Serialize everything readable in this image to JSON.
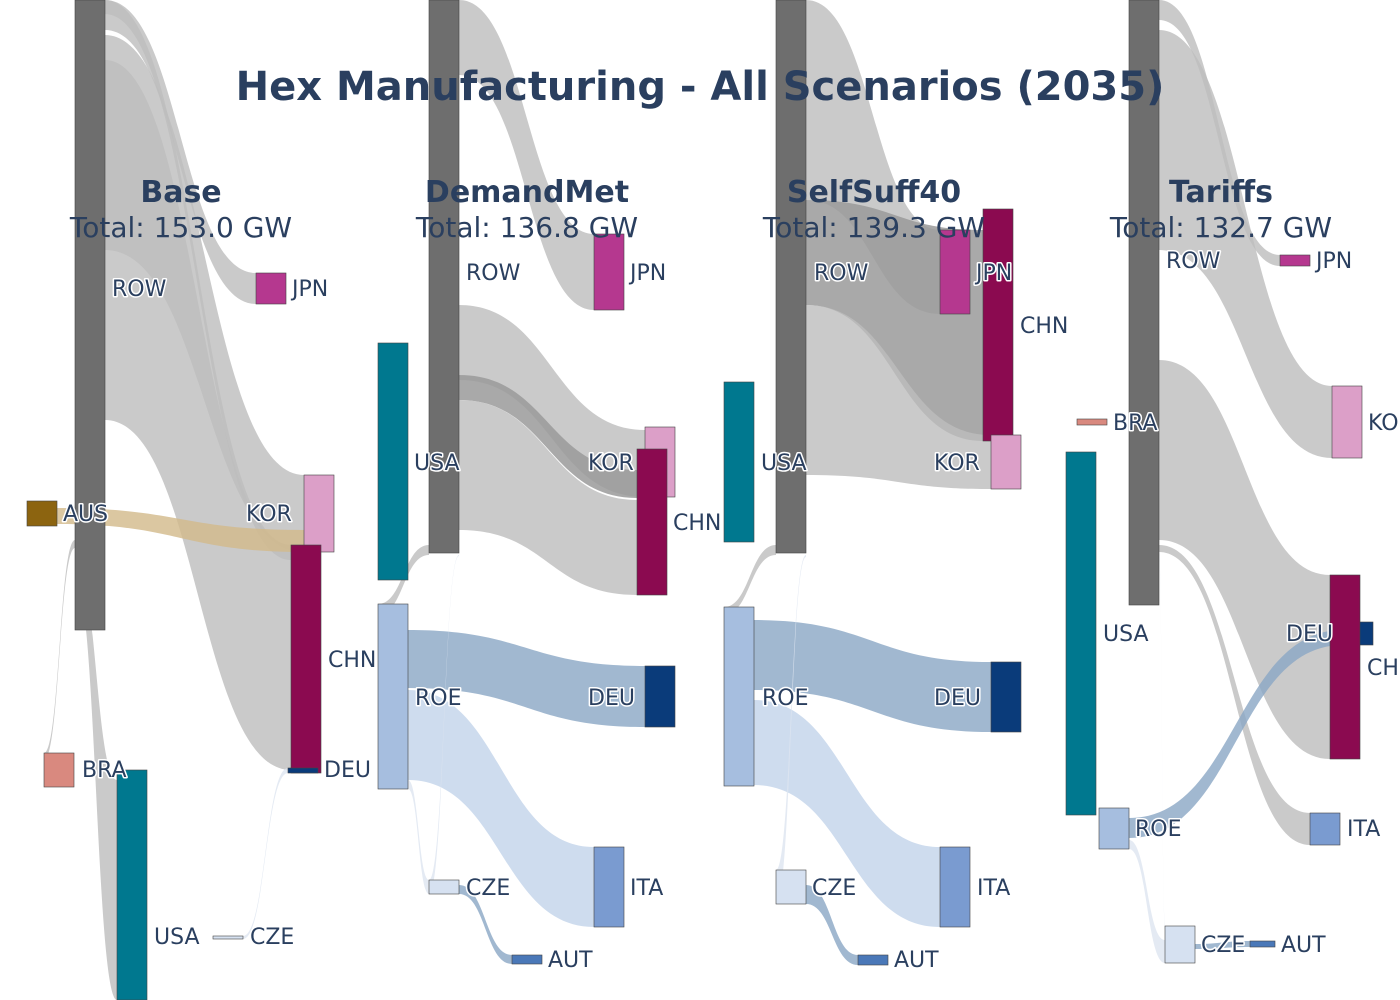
{
  "title": "Hex Manufacturing - All Scenarios (2035)",
  "colors": {
    "ROW": "#6e6e6e",
    "JPN": "#b5388f",
    "KOR": "#dc9fc8",
    "CHN": "#8b0a50",
    "DEU": "#0a3b7a",
    "USA": "#00788f",
    "ROE": "#a6bedf",
    "BRA": "#d9897f",
    "AUS": "#8c6410",
    "CZE": "#d6e1f1",
    "ITA": "#7a9bd0",
    "AUT": "#4a78b8",
    "link_gray": "#bdbdbd",
    "link_dark": "#9a9a9a",
    "link_aus": "#d2b98a",
    "link_roe_deu": "#8aa6c4",
    "link_roe_ita": "#c2d3ea",
    "link_faint": "#dde5f0"
  },
  "panels": [
    {
      "name": "Base",
      "total": "Total: 153.0 GW",
      "nodes": [
        {
          "id": "ROW",
          "label": "ROW"
        },
        {
          "id": "JPN",
          "label": "JPN"
        },
        {
          "id": "AUS",
          "label": "AUS"
        },
        {
          "id": "KOR",
          "label": "KOR"
        },
        {
          "id": "CHN",
          "label": "CHN"
        },
        {
          "id": "BRA",
          "label": "BRA"
        },
        {
          "id": "DEU",
          "label": "DEU"
        },
        {
          "id": "USA",
          "label": "USA"
        },
        {
          "id": "CZE",
          "label": "CZE"
        }
      ]
    },
    {
      "name": "DemandMet",
      "total": "Total: 136.8 GW",
      "nodes": [
        {
          "id": "ROW",
          "label": "ROW"
        },
        {
          "id": "JPN",
          "label": "JPN"
        },
        {
          "id": "USA",
          "label": "USA"
        },
        {
          "id": "KOR",
          "label": "KOR"
        },
        {
          "id": "CHN",
          "label": "CHN"
        },
        {
          "id": "ROE",
          "label": "ROE"
        },
        {
          "id": "DEU",
          "label": "DEU"
        },
        {
          "id": "CZE",
          "label": "CZE"
        },
        {
          "id": "ITA",
          "label": "ITA"
        },
        {
          "id": "AUT",
          "label": "AUT"
        }
      ]
    },
    {
      "name": "SelfSuff40",
      "total": "Total: 139.3 GW",
      "nodes": [
        {
          "id": "ROW",
          "label": "ROW"
        },
        {
          "id": "JPN",
          "label": "JPN"
        },
        {
          "id": "CHN",
          "label": "CHN"
        },
        {
          "id": "USA",
          "label": "USA"
        },
        {
          "id": "KOR",
          "label": "KOR"
        },
        {
          "id": "ROE",
          "label": "ROE"
        },
        {
          "id": "DEU",
          "label": "DEU"
        },
        {
          "id": "CZE",
          "label": "CZE"
        },
        {
          "id": "ITA",
          "label": "ITA"
        },
        {
          "id": "AUT",
          "label": "AUT"
        }
      ]
    },
    {
      "name": "Tariffs",
      "total": "Total: 132.7 GW",
      "nodes": [
        {
          "id": "ROW",
          "label": "ROW"
        },
        {
          "id": "JPN",
          "label": "JPN"
        },
        {
          "id": "BRA",
          "label": "BRA"
        },
        {
          "id": "KOR",
          "label": "KOR"
        },
        {
          "id": "USA",
          "label": "USA"
        },
        {
          "id": "DEU",
          "label": "DEU"
        },
        {
          "id": "CHN",
          "label": "CHN"
        },
        {
          "id": "ROE",
          "label": "ROE"
        },
        {
          "id": "ITA",
          "label": "ITA"
        },
        {
          "id": "CZE",
          "label": "CZE"
        },
        {
          "id": "AUT",
          "label": "AUT"
        }
      ]
    }
  ],
  "chart_data": {
    "type": "sankey",
    "title": "Hex Manufacturing - All Scenarios (2035)",
    "unit": "GW",
    "scenarios": [
      {
        "name": "Base",
        "total_gw": 153.0,
        "links": [
          [
            "ROW",
            "JPN"
          ],
          [
            "ROW",
            "KOR"
          ],
          [
            "ROW",
            "CHN"
          ],
          [
            "ROW",
            "BRA"
          ],
          [
            "ROW",
            "USA"
          ],
          [
            "AUS",
            "KOR"
          ],
          [
            "CZE",
            "DEU"
          ],
          [
            "USA",
            "CZE"
          ]
        ]
      },
      {
        "name": "DemandMet",
        "total_gw": 136.8,
        "links": [
          [
            "ROW",
            "JPN"
          ],
          [
            "ROW",
            "KOR"
          ],
          [
            "ROW",
            "CHN"
          ],
          [
            "ROW",
            "ROE"
          ],
          [
            "ROW",
            "CZE"
          ],
          [
            "ROE",
            "DEU"
          ],
          [
            "ROE",
            "ITA"
          ],
          [
            "ROE",
            "CZE"
          ],
          [
            "CZE",
            "AUT"
          ]
        ]
      },
      {
        "name": "SelfSuff40",
        "total_gw": 139.3,
        "links": [
          [
            "ROW",
            "JPN"
          ],
          [
            "ROW",
            "CHN"
          ],
          [
            "ROW",
            "KOR"
          ],
          [
            "ROW",
            "ROE"
          ],
          [
            "ROW",
            "CZE"
          ],
          [
            "ROE",
            "DEU"
          ],
          [
            "ROE",
            "ITA"
          ],
          [
            "ROE",
            "CZE"
          ],
          [
            "CZE",
            "AUT"
          ]
        ]
      },
      {
        "name": "Tariffs",
        "total_gw": 132.7,
        "links": [
          [
            "ROW",
            "JPN"
          ],
          [
            "ROW",
            "KOR"
          ],
          [
            "ROW",
            "CHN"
          ],
          [
            "ROW",
            "ITA"
          ],
          [
            "ROW",
            "CZE"
          ],
          [
            "ROE",
            "DEU"
          ],
          [
            "ROE",
            "CZE"
          ],
          [
            "CZE",
            "AUT"
          ]
        ]
      }
    ]
  }
}
